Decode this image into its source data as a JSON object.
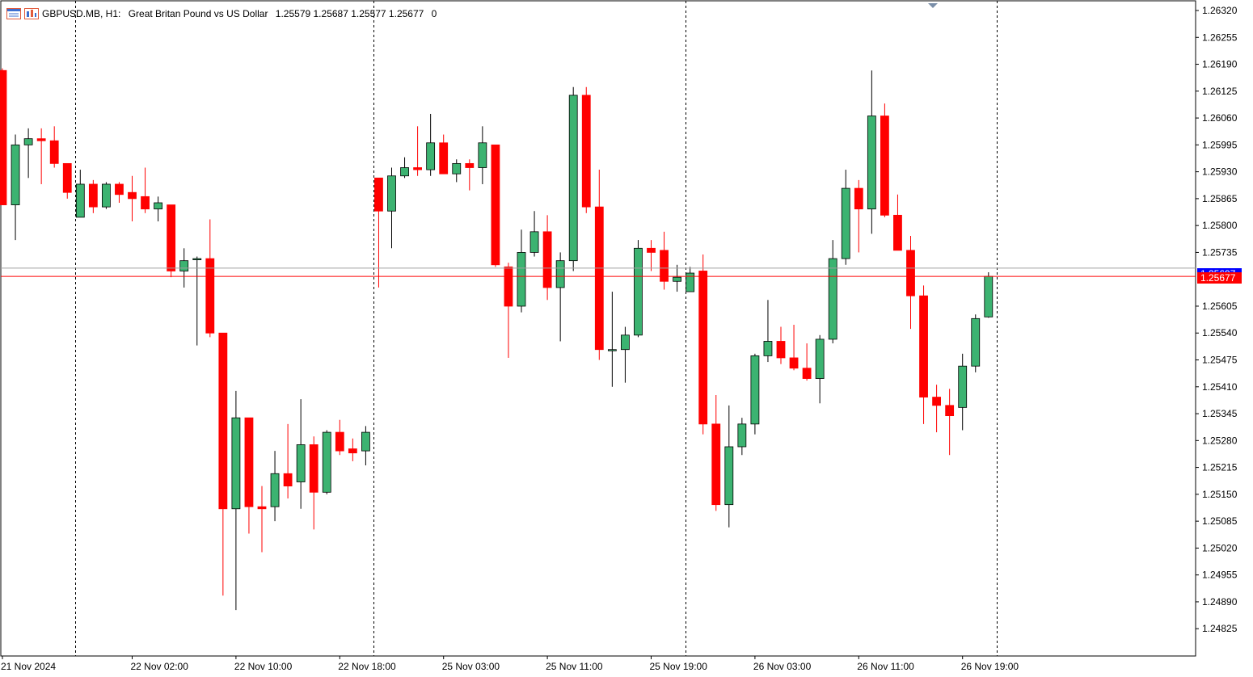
{
  "header": {
    "symbol": "GBPUSD.MB, H1:",
    "description": "Great Britan Pound vs US Dollar",
    "ohlc": "1.25579 1.25687 1.25577 1.25677",
    "volume": "0"
  },
  "colors": {
    "bull": "#3cb371",
    "bear": "#ff0000",
    "bid_line": "#ff0000",
    "ask_line": "#0000ff",
    "grid": "#000000"
  },
  "price_tags": {
    "ask_label": "1.25697",
    "bid_label": "1.25677"
  },
  "chart_data": {
    "type": "candlestick",
    "ylim": [
      1.2476,
      1.2636
    ],
    "y_ticks": [
      "1.26320",
      "1.26255",
      "1.26190",
      "1.26125",
      "1.26060",
      "1.25995",
      "1.25930",
      "1.25865",
      "1.25800",
      "1.25735",
      "1.25605",
      "1.25540",
      "1.25475",
      "1.25410",
      "1.25345",
      "1.25280",
      "1.25215",
      "1.25150",
      "1.25085",
      "1.25020",
      "1.24955",
      "1.24890",
      "1.24825"
    ],
    "x_ticks": [
      {
        "label": "21 Nov 2024",
        "index": 0
      },
      {
        "label": "22 Nov 02:00",
        "index": 10
      },
      {
        "label": "22 Nov 10:00",
        "index": 18
      },
      {
        "label": "22 Nov 18:00",
        "index": 26
      },
      {
        "label": "25 Nov 03:00",
        "index": 34
      },
      {
        "label": "25 Nov 11:00",
        "index": 42
      },
      {
        "label": "25 Nov 19:00",
        "index": 50
      },
      {
        "label": "26 Nov 03:00",
        "index": 58
      },
      {
        "label": "26 Nov 11:00",
        "index": 66
      },
      {
        "label": "26 Nov 19:00",
        "index": 74
      }
    ],
    "day_separators": [
      6,
      29,
      53,
      77
    ],
    "candles": [
      {
        "o": 1.26175,
        "h": 1.2618,
        "l": 1.2585,
        "c": 1.2585
      },
      {
        "o": 1.2585,
        "h": 1.2602,
        "l": 1.25765,
        "c": 1.25995
      },
      {
        "o": 1.25995,
        "h": 1.26035,
        "l": 1.25915,
        "c": 1.2601
      },
      {
        "o": 1.2601,
        "h": 1.26035,
        "l": 1.259,
        "c": 1.26005
      },
      {
        "o": 1.26005,
        "h": 1.2604,
        "l": 1.2594,
        "c": 1.2595
      },
      {
        "o": 1.2595,
        "h": 1.2595,
        "l": 1.25865,
        "c": 1.2588
      },
      {
        "o": 1.2582,
        "h": 1.25935,
        "l": 1.2582,
        "c": 1.259
      },
      {
        "o": 1.259,
        "h": 1.2591,
        "l": 1.2583,
        "c": 1.25845
      },
      {
        "o": 1.25845,
        "h": 1.25905,
        "l": 1.2584,
        "c": 1.259
      },
      {
        "o": 1.259,
        "h": 1.25905,
        "l": 1.25855,
        "c": 1.25875
      },
      {
        "o": 1.2588,
        "h": 1.2592,
        "l": 1.2581,
        "c": 1.25865
      },
      {
        "o": 1.2587,
        "h": 1.2594,
        "l": 1.2583,
        "c": 1.2584
      },
      {
        "o": 1.2584,
        "h": 1.2587,
        "l": 1.2581,
        "c": 1.25855
      },
      {
        "o": 1.2585,
        "h": 1.2585,
        "l": 1.25675,
        "c": 1.2569
      },
      {
        "o": 1.2569,
        "h": 1.25745,
        "l": 1.2565,
        "c": 1.25715
      },
      {
        "o": 1.2572,
        "h": 1.25725,
        "l": 1.2551,
        "c": 1.2572
      },
      {
        "o": 1.2572,
        "h": 1.25815,
        "l": 1.2553,
        "c": 1.2554
      },
      {
        "o": 1.2554,
        "h": 1.2554,
        "l": 1.24905,
        "c": 1.25115
      },
      {
        "o": 1.25115,
        "h": 1.254,
        "l": 1.2487,
        "c": 1.25335
      },
      {
        "o": 1.25335,
        "h": 1.25335,
        "l": 1.25055,
        "c": 1.2512
      },
      {
        "o": 1.2512,
        "h": 1.2517,
        "l": 1.2501,
        "c": 1.25115
      },
      {
        "o": 1.2512,
        "h": 1.25255,
        "l": 1.25085,
        "c": 1.252
      },
      {
        "o": 1.252,
        "h": 1.2532,
        "l": 1.2514,
        "c": 1.2517
      },
      {
        "o": 1.2518,
        "h": 1.2538,
        "l": 1.25115,
        "c": 1.2527
      },
      {
        "o": 1.2527,
        "h": 1.2529,
        "l": 1.25065,
        "c": 1.25155
      },
      {
        "o": 1.25155,
        "h": 1.25305,
        "l": 1.2515,
        "c": 1.253
      },
      {
        "o": 1.253,
        "h": 1.2533,
        "l": 1.25245,
        "c": 1.25255
      },
      {
        "o": 1.2526,
        "h": 1.25285,
        "l": 1.2523,
        "c": 1.2525
      },
      {
        "o": 1.25255,
        "h": 1.25315,
        "l": 1.2522,
        "c": 1.253
      },
      {
        "o": 1.25915,
        "h": 1.25915,
        "l": 1.2565,
        "c": 1.25835
      },
      {
        "o": 1.25835,
        "h": 1.2594,
        "l": 1.25745,
        "c": 1.2592
      },
      {
        "o": 1.2592,
        "h": 1.25965,
        "l": 1.25915,
        "c": 1.2594
      },
      {
        "o": 1.2594,
        "h": 1.2604,
        "l": 1.2592,
        "c": 1.25935
      },
      {
        "o": 1.25935,
        "h": 1.2607,
        "l": 1.2592,
        "c": 1.26
      },
      {
        "o": 1.26,
        "h": 1.2602,
        "l": 1.25925,
        "c": 1.25925
      },
      {
        "o": 1.25925,
        "h": 1.2596,
        "l": 1.25905,
        "c": 1.2595
      },
      {
        "o": 1.2595,
        "h": 1.2596,
        "l": 1.25885,
        "c": 1.2594
      },
      {
        "o": 1.2594,
        "h": 1.2604,
        "l": 1.259,
        "c": 1.26
      },
      {
        "o": 1.25995,
        "h": 1.25995,
        "l": 1.257,
        "c": 1.25705
      },
      {
        "o": 1.257,
        "h": 1.2571,
        "l": 1.2548,
        "c": 1.25605
      },
      {
        "o": 1.25605,
        "h": 1.2579,
        "l": 1.2559,
        "c": 1.25735
      },
      {
        "o": 1.25735,
        "h": 1.25835,
        "l": 1.25725,
        "c": 1.25785
      },
      {
        "o": 1.25785,
        "h": 1.25825,
        "l": 1.2562,
        "c": 1.2565
      },
      {
        "o": 1.2565,
        "h": 1.25735,
        "l": 1.2552,
        "c": 1.25715
      },
      {
        "o": 1.25715,
        "h": 1.26135,
        "l": 1.2569,
        "c": 1.26115
      },
      {
        "o": 1.26115,
        "h": 1.26135,
        "l": 1.2583,
        "c": 1.25845
      },
      {
        "o": 1.25845,
        "h": 1.25935,
        "l": 1.25475,
        "c": 1.255
      },
      {
        "o": 1.255,
        "h": 1.2564,
        "l": 1.2541,
        "c": 1.255
      },
      {
        "o": 1.255,
        "h": 1.25555,
        "l": 1.2542,
        "c": 1.25535
      },
      {
        "o": 1.25535,
        "h": 1.25765,
        "l": 1.2553,
        "c": 1.25745
      },
      {
        "o": 1.25745,
        "h": 1.25765,
        "l": 1.2569,
        "c": 1.25735
      },
      {
        "o": 1.2574,
        "h": 1.25785,
        "l": 1.25645,
        "c": 1.25665
      },
      {
        "o": 1.25665,
        "h": 1.25705,
        "l": 1.2564,
        "c": 1.25675
      },
      {
        "o": 1.2564,
        "h": 1.257,
        "l": 1.2564,
        "c": 1.25685
      },
      {
        "o": 1.2569,
        "h": 1.2573,
        "l": 1.25295,
        "c": 1.2532
      },
      {
        "o": 1.2532,
        "h": 1.2539,
        "l": 1.2511,
        "c": 1.25125
      },
      {
        "o": 1.25125,
        "h": 1.25365,
        "l": 1.2507,
        "c": 1.25265
      },
      {
        "o": 1.25265,
        "h": 1.25335,
        "l": 1.25245,
        "c": 1.2532
      },
      {
        "o": 1.2532,
        "h": 1.2549,
        "l": 1.25295,
        "c": 1.25485
      },
      {
        "o": 1.25485,
        "h": 1.2562,
        "l": 1.2547,
        "c": 1.2552
      },
      {
        "o": 1.2552,
        "h": 1.25555,
        "l": 1.25465,
        "c": 1.2548
      },
      {
        "o": 1.2548,
        "h": 1.2556,
        "l": 1.2545,
        "c": 1.25455
      },
      {
        "o": 1.25455,
        "h": 1.25515,
        "l": 1.25425,
        "c": 1.2543
      },
      {
        "o": 1.2543,
        "h": 1.25535,
        "l": 1.2537,
        "c": 1.25525
      },
      {
        "o": 1.25525,
        "h": 1.25765,
        "l": 1.25515,
        "c": 1.2572
      },
      {
        "o": 1.2572,
        "h": 1.25935,
        "l": 1.25705,
        "c": 1.2589
      },
      {
        "o": 1.2589,
        "h": 1.2591,
        "l": 1.25735,
        "c": 1.2584
      },
      {
        "o": 1.2584,
        "h": 1.26175,
        "l": 1.2578,
        "c": 1.26065
      },
      {
        "o": 1.26065,
        "h": 1.26095,
        "l": 1.2582,
        "c": 1.25825
      },
      {
        "o": 1.25825,
        "h": 1.25875,
        "l": 1.25745,
        "c": 1.2574
      },
      {
        "o": 1.2574,
        "h": 1.25775,
        "l": 1.2555,
        "c": 1.2563
      },
      {
        "o": 1.2563,
        "h": 1.25655,
        "l": 1.2532,
        "c": 1.25385
      },
      {
        "o": 1.25385,
        "h": 1.25415,
        "l": 1.253,
        "c": 1.25365
      },
      {
        "o": 1.25365,
        "h": 1.25405,
        "l": 1.25245,
        "c": 1.2534
      },
      {
        "o": 1.2536,
        "h": 1.2549,
        "l": 1.25305,
        "c": 1.2546
      },
      {
        "o": 1.2546,
        "h": 1.25585,
        "l": 1.25445,
        "c": 1.25575
      },
      {
        "o": 1.25579,
        "h": 1.25687,
        "l": 1.25577,
        "c": 1.25677
      }
    ]
  }
}
